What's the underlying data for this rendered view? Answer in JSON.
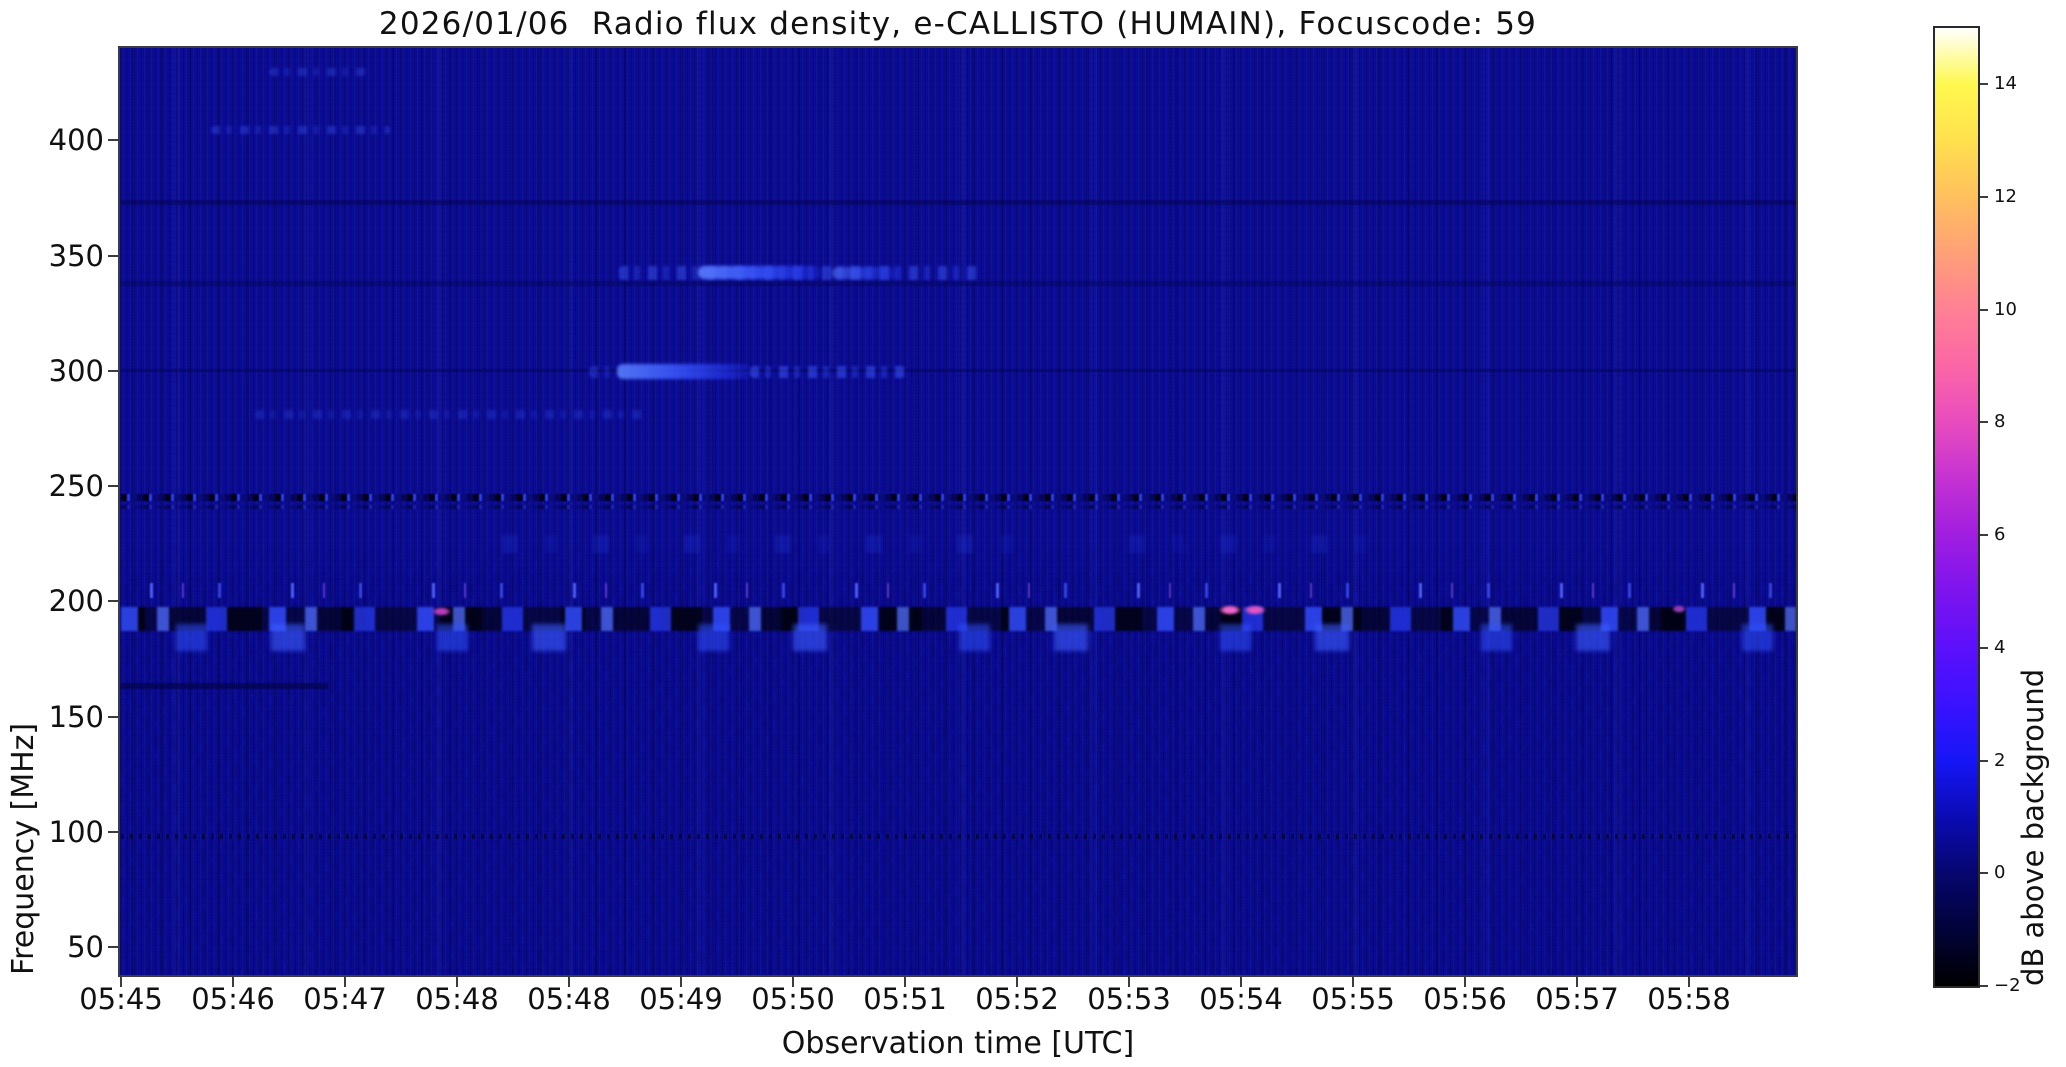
{
  "chart_data": {
    "type": "heatmap",
    "title": "2026/01/06  Radio flux density, e-CALLISTO (HUMAIN), Focuscode: 59",
    "xlabel": "Observation time [UTC]",
    "ylabel": "Frequency [MHz]",
    "colorbar_label": "dB above background",
    "x_tick_labels": [
      "05:45",
      "05:46",
      "05:47",
      "05:48",
      "05:48",
      "05:49",
      "05:50",
      "05:51",
      "05:52",
      "05:53",
      "05:54",
      "05:55",
      "05:56",
      "05:57",
      "05:58"
    ],
    "x_axis_span_minutes": 15,
    "start_time_utc": "05:45",
    "y_tick_values": [
      400,
      350,
      300,
      250,
      200,
      150,
      100,
      50
    ],
    "y_axis_range_mhz": [
      38,
      440
    ],
    "background_color": "#0c0c93",
    "grid": false,
    "colorbar": {
      "ticks": [
        14,
        12,
        10,
        8,
        6,
        4,
        2,
        0,
        -2
      ],
      "range": [
        -2,
        15
      ],
      "stops": [
        {
          "v": -2,
          "c": "#000000"
        },
        {
          "v": -1,
          "c": "#02023a"
        },
        {
          "v": 0,
          "c": "#06066e"
        },
        {
          "v": 1,
          "c": "#0b0bb4"
        },
        {
          "v": 2,
          "c": "#1616f6"
        },
        {
          "v": 3,
          "c": "#3a12ff"
        },
        {
          "v": 4,
          "c": "#5c10fc"
        },
        {
          "v": 5,
          "c": "#7d14ee"
        },
        {
          "v": 6,
          "c": "#a01ee0"
        },
        {
          "v": 7,
          "c": "#c532d2"
        },
        {
          "v": 8,
          "c": "#e84cbe"
        },
        {
          "v": 9,
          "c": "#fb66a6"
        },
        {
          "v": 10,
          "c": "#ff8095"
        },
        {
          "v": 11,
          "c": "#ffa077"
        },
        {
          "v": 12,
          "c": "#ffc05e"
        },
        {
          "v": 13,
          "c": "#ffe04e"
        },
        {
          "v": 14,
          "c": "#fff84e"
        },
        {
          "v": 15,
          "c": "#ffffff"
        }
      ]
    },
    "features": [
      {
        "name": "faint-streak-430mhz",
        "kind": "bright-dashed",
        "t0": 1.32,
        "t1": 2.2,
        "f0": 428,
        "f1": 431.5,
        "opacity": 0.35
      },
      {
        "name": "faint-streak-404mhz",
        "kind": "bright-dashed",
        "t0": 0.8,
        "t1": 2.4,
        "f0": 402.5,
        "f1": 406,
        "opacity": 0.4
      },
      {
        "name": "channel-line-373mhz",
        "kind": "dark-line",
        "t0": 0,
        "t1": 15,
        "f0": 372,
        "f1": 374,
        "color": "#03034e",
        "opacity": 0.5
      },
      {
        "name": "channel-line-338mhz",
        "kind": "dark-line",
        "t0": 0,
        "t1": 15,
        "f0": 337,
        "f1": 339,
        "color": "#03034e",
        "opacity": 0.4
      },
      {
        "name": "burst-343mhz-faint",
        "kind": "bright-dashed",
        "t0": 4.45,
        "t1": 7.65,
        "f0": 339.5,
        "f1": 345.5,
        "opacity": 0.55
      },
      {
        "name": "burst-343mhz-core",
        "kind": "bright-core",
        "t0": 5.15,
        "t1": 6.25,
        "f0": 340,
        "f1": 345.5,
        "opacity": 0.95
      },
      {
        "name": "burst-343mhz-core2",
        "kind": "bright-core",
        "t0": 6.35,
        "t1": 6.95,
        "f0": 340,
        "f1": 345,
        "opacity": 0.6
      },
      {
        "name": "channel-line-300mhz",
        "kind": "dark-line",
        "t0": 0,
        "t1": 15,
        "f0": 299.5,
        "f1": 301,
        "color": "#03034e",
        "opacity": 0.5
      },
      {
        "name": "burst-300mhz-core",
        "kind": "bright-core",
        "t0": 4.43,
        "t1": 5.62,
        "f0": 296.5,
        "f1": 303,
        "opacity": 0.95
      },
      {
        "name": "burst-300mhz-tail",
        "kind": "bright-dashed",
        "t0": 5.62,
        "t1": 7.0,
        "f0": 297,
        "f1": 302,
        "opacity": 0.6
      },
      {
        "name": "burst-300mhz-lead",
        "kind": "bright-dashed",
        "t0": 4.18,
        "t1": 4.43,
        "f0": 297,
        "f1": 302,
        "opacity": 0.4
      },
      {
        "name": "faint-band-281mhz",
        "kind": "bright-dashed",
        "t0": 1.2,
        "t1": 4.7,
        "f0": 279,
        "f1": 283,
        "opacity": 0.28
      },
      {
        "name": "dotted-line-245mhz",
        "kind": "dotted-line",
        "t0": 0,
        "t1": 15,
        "f0": 243.5,
        "f1": 246.5,
        "opacity": 1
      },
      {
        "name": "dotted-line-241mhz",
        "kind": "dotted-line",
        "t0": 0,
        "t1": 15,
        "f0": 240,
        "f1": 242,
        "opacity": 0.45
      },
      {
        "name": "speckle-225mhz-a",
        "kind": "speckle",
        "t0": 3.4,
        "t1": 8.2,
        "f0": 221,
        "f1": 229,
        "opacity": 0.5
      },
      {
        "name": "speckle-225mhz-b",
        "kind": "speckle",
        "t0": 9.0,
        "t1": 11.4,
        "f0": 221,
        "f1": 229,
        "opacity": 0.45
      },
      {
        "name": "rfi-tick-row-205mhz",
        "kind": "rfi-dashes",
        "t0": 0,
        "t1": 15,
        "f0": 201.5,
        "f1": 208,
        "opacity": 1
      },
      {
        "name": "rfi-band-190mhz",
        "kind": "rfi-band",
        "t0": 0,
        "t1": 15,
        "f0": 187,
        "f1": 197.5,
        "opacity": 1
      },
      {
        "name": "rfi-band-lower-blobs",
        "kind": "rfi-lower",
        "t0": 0,
        "t1": 15,
        "f0": 178.5,
        "f1": 190,
        "opacity": 1
      },
      {
        "name": "pink-spot-0548",
        "kind": "pink-spot",
        "t0": 2.78,
        "t1": 2.95,
        "f0": 193.5,
        "f1": 197.5,
        "color": "#cc44cc",
        "opacity": 0.9
      },
      {
        "name": "pink-spot-0554-a",
        "kind": "pink-spot",
        "t0": 9.8,
        "t1": 10.0,
        "f0": 194,
        "f1": 198.5,
        "color": "#ee66cc",
        "opacity": 1
      },
      {
        "name": "pink-spot-0554-b",
        "kind": "pink-spot",
        "t0": 10.03,
        "t1": 10.22,
        "f0": 194,
        "f1": 198.5,
        "color": "#e055c0",
        "opacity": 1
      },
      {
        "name": "pink-spot-0558",
        "kind": "pink-spot",
        "t0": 13.85,
        "t1": 13.97,
        "f0": 195,
        "f1": 198.5,
        "color": "#b347d9",
        "opacity": 0.85
      },
      {
        "name": "dark-line-163mhz",
        "kind": "dark-line",
        "t0": 0,
        "t1": 1.85,
        "f0": 162,
        "f1": 164.5,
        "color": "#020240",
        "opacity": 0.6
      },
      {
        "name": "dotted-line-98mhz",
        "kind": "dotted-faint",
        "t0": 0,
        "t1": 15,
        "f0": 97,
        "f1": 99,
        "opacity": 0.6
      }
    ]
  }
}
